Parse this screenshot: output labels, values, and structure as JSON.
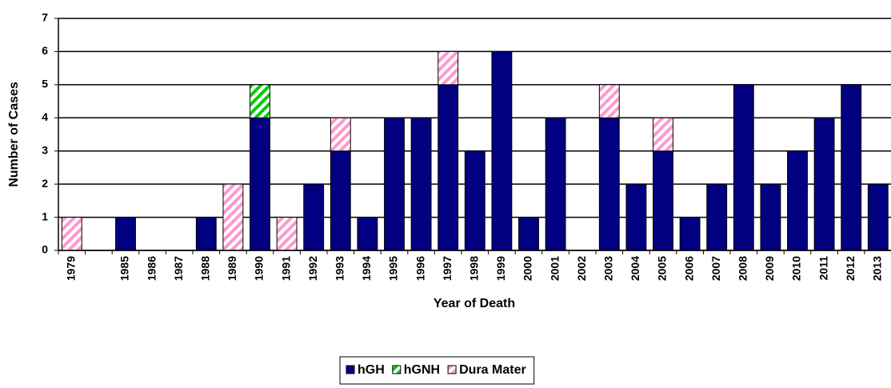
{
  "chart_data": {
    "type": "stacked_bar",
    "categories": [
      "1979",
      null,
      "1985",
      "1986",
      "1987",
      "1988",
      "1989",
      "1990",
      "1991",
      "1992",
      "1993",
      "1994",
      "1995",
      "1996",
      "1997",
      "1998",
      "1999",
      "2000",
      "2001",
      "2002",
      "2003",
      "2004",
      "2005",
      "2006",
      "2007",
      "2008",
      "2009",
      "2010",
      "2011",
      "2012",
      "2013"
    ],
    "series": [
      {
        "name": "hGH",
        "color": "#000080",
        "hatch": false,
        "values": [
          0,
          0,
          1,
          0,
          0,
          1,
          0,
          4,
          0,
          2,
          3,
          1,
          4,
          4,
          5,
          3,
          6,
          1,
          4,
          0,
          4,
          2,
          3,
          1,
          2,
          5,
          2,
          3,
          4,
          5,
          2
        ]
      },
      {
        "name": "hGNH",
        "color": "#00cc00",
        "hatch": true,
        "values": [
          0,
          0,
          0,
          0,
          0,
          0,
          0,
          1,
          0,
          0,
          0,
          0,
          0,
          0,
          0,
          0,
          0,
          0,
          0,
          0,
          0,
          0,
          0,
          0,
          0,
          0,
          0,
          0,
          0,
          0,
          0
        ]
      },
      {
        "name": "Dura Mater",
        "color": "#ff99cc",
        "hatch": true,
        "values": [
          1,
          0,
          0,
          0,
          0,
          0,
          2,
          0,
          1,
          0,
          1,
          0,
          0,
          0,
          1,
          0,
          0,
          0,
          0,
          0,
          1,
          0,
          1,
          0,
          0,
          0,
          0,
          0,
          0,
          0,
          0
        ]
      }
    ],
    "xlabel": "Year of Death",
    "ylabel": "Number of Cases",
    "ylim": [
      0,
      7
    ],
    "yticks": [
      0,
      1,
      2,
      3,
      4,
      5,
      6,
      7
    ],
    "grid": true,
    "legend": "bottom"
  }
}
